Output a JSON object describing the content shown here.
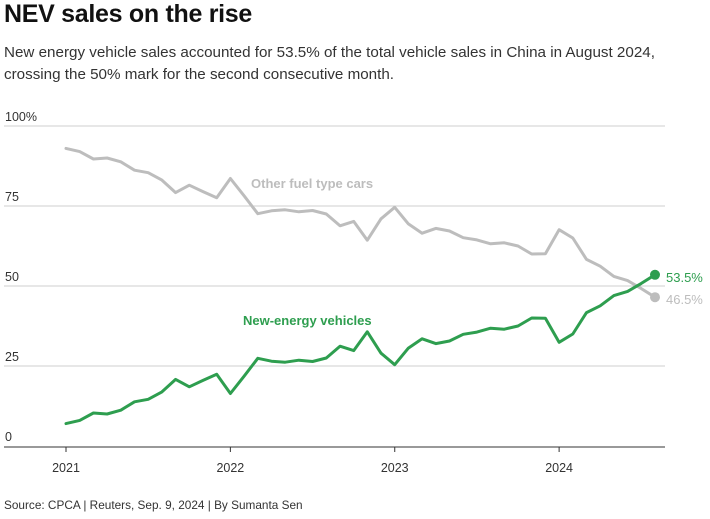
{
  "header": {
    "title": "NEV sales on the rise",
    "subtitle": "New energy vehicle sales accounted for 53.5% of the total vehicle sales in China in August 2024, crossing the 50% mark for the second consecutive month."
  },
  "footer": {
    "source": "Source: CPCA | Reuters, Sep. 9, 2024 | By Sumanta Sen"
  },
  "chart_data": {
    "type": "line",
    "title": "NEV sales on the rise",
    "xlabel": "",
    "ylabel": "",
    "ylim": [
      0,
      100
    ],
    "xlim": [
      "2021-01",
      "2024-08"
    ],
    "y_ticks": [
      0,
      25,
      50,
      75,
      100
    ],
    "y_tick_labels": [
      "0",
      "25",
      "50",
      "75",
      "100%"
    ],
    "x_ticks": [
      "2021-01",
      "2022-01",
      "2023-01",
      "2024-01"
    ],
    "x_tick_labels": [
      "2021",
      "2022",
      "2023",
      "2024"
    ],
    "grid": "horizontal",
    "x": [
      "2021-01",
      "2021-02",
      "2021-03",
      "2021-04",
      "2021-05",
      "2021-06",
      "2021-07",
      "2021-08",
      "2021-09",
      "2021-10",
      "2021-11",
      "2021-12",
      "2022-01",
      "2022-02",
      "2022-03",
      "2022-04",
      "2022-05",
      "2022-06",
      "2022-07",
      "2022-08",
      "2022-09",
      "2022-10",
      "2022-11",
      "2022-12",
      "2023-01",
      "2023-02",
      "2023-03",
      "2023-04",
      "2023-05",
      "2023-06",
      "2023-07",
      "2023-08",
      "2023-09",
      "2023-10",
      "2023-11",
      "2023-12",
      "2024-01",
      "2024-02",
      "2024-03",
      "2024-04",
      "2024-05",
      "2024-06",
      "2024-07",
      "2024-08"
    ],
    "series": [
      {
        "name": "Other fuel type cars",
        "color": "#bdbdbd",
        "end_label": "46.5%",
        "values": [
          93.0,
          92.0,
          89.7,
          90.0,
          88.8,
          86.2,
          85.4,
          83.1,
          79.2,
          81.5,
          79.5,
          77.6,
          83.6,
          78.2,
          72.6,
          73.5,
          73.8,
          73.2,
          73.6,
          72.5,
          68.8,
          70.2,
          64.3,
          71.0,
          74.6,
          69.4,
          66.5,
          68.0,
          67.2,
          65.1,
          64.4,
          63.2,
          63.5,
          62.5,
          60.0,
          60.1,
          67.6,
          65.0,
          58.3,
          56.2,
          53.0,
          51.7,
          49.2,
          46.5
        ]
      },
      {
        "name": "New-energy vehicles",
        "color": "#2e9e4f",
        "end_label": "53.5%",
        "values": [
          7.0,
          8.0,
          10.3,
          10.0,
          11.2,
          13.8,
          14.6,
          16.9,
          20.8,
          18.5,
          20.5,
          22.4,
          16.4,
          21.8,
          27.4,
          26.5,
          26.2,
          26.8,
          26.4,
          27.5,
          31.2,
          29.8,
          35.7,
          29.0,
          25.4,
          30.6,
          33.5,
          32.0,
          32.8,
          34.9,
          35.6,
          36.8,
          36.5,
          37.5,
          40.0,
          39.9,
          32.4,
          35.0,
          41.7,
          43.8,
          47.0,
          48.3,
          50.8,
          53.5
        ]
      }
    ]
  }
}
